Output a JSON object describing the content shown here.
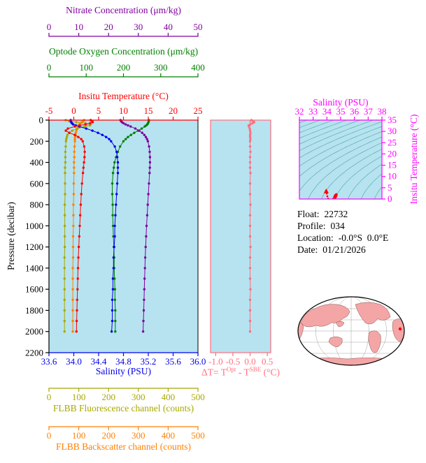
{
  "info": {
    "lines": [
      {
        "label": "Float:",
        "value": "22732"
      },
      {
        "label": "Profile:",
        "value": "034"
      },
      {
        "label": "Location:",
        "value": "-0.0°S  0.0°E"
      },
      {
        "label": "Date:",
        "value": "01/21/2026"
      }
    ]
  },
  "axes": {
    "nitrate": {
      "title": "Nitrate Concentration (μm/kg)",
      "color": "#8000a0",
      "range": [
        0,
        50
      ],
      "ticks": [
        "0",
        "10",
        "20",
        "30",
        "40",
        "50"
      ]
    },
    "oxygen": {
      "title": "Optode Oxygen Concentration (μm/kg)",
      "color": "#008000",
      "range": [
        0,
        400
      ],
      "ticks": [
        "0",
        "100",
        "200",
        "300",
        "400"
      ]
    },
    "temperature": {
      "title": "Insitu Temperature (°C)",
      "color": "#ff0000",
      "range": [
        -5,
        25
      ],
      "ticks": [
        "-5",
        "0",
        "5",
        "10",
        "15",
        "20",
        "25"
      ]
    },
    "pressure": {
      "title": "Pressure (decibar)",
      "color": "#000000",
      "range": [
        0,
        2200
      ],
      "ticks": [
        "0",
        "200",
        "400",
        "600",
        "800",
        "1000",
        "1200",
        "1400",
        "1600",
        "1800",
        "2000",
        "2200"
      ]
    },
    "salinity": {
      "title": "Salinity (PSU)",
      "color": "#0000ee",
      "range": [
        33.6,
        36.0
      ],
      "ticks": [
        "33.6",
        "34.0",
        "34.4",
        "34.8",
        "35.2",
        "35.6",
        "36.0"
      ]
    },
    "fluorescence": {
      "title": "FLBB Fluorescence channel (counts)",
      "color": "#a8a800",
      "range": [
        0,
        500
      ],
      "ticks": [
        "0",
        "100",
        "200",
        "300",
        "400",
        "500"
      ]
    },
    "backscatter": {
      "title": "FLBB Backscatter channel (counts)",
      "color": "#ff8000",
      "range": [
        0,
        500
      ],
      "ticks": [
        "0",
        "100",
        "200",
        "300",
        "400",
        "500"
      ]
    },
    "delta": {
      "label_parts": {
        "prefix": "ΔT= T",
        "sup1": "Opt",
        "mid": " - T",
        "sup2": "SBE",
        "suffix": " (°C)"
      },
      "color": "#ff6f7f",
      "range": [
        -1.15,
        0.6
      ],
      "ticks": [
        "-1.0",
        "-0.5",
        "0.0",
        "0.5"
      ]
    },
    "ts_salinity": {
      "title": "Salinity (PSU)",
      "color": "#ff00ff",
      "range": [
        32,
        38
      ],
      "ticks": [
        "32",
        "33",
        "34",
        "35",
        "36",
        "37",
        "38"
      ]
    },
    "ts_temperature": {
      "title": "Insitu Temperature (°C)",
      "color": "#ff00ff",
      "range": [
        0,
        35
      ],
      "ticks": [
        "0",
        "5",
        "10",
        "15",
        "20",
        "25",
        "30",
        "35"
      ]
    }
  },
  "colors": {
    "plot_bg": "#b6e3ef",
    "contour": "#4fa3a3",
    "land": "#f4a6a6",
    "land_edge": "#8a5050",
    "map_grid": "#a0a0a0",
    "map_outline": "#000000",
    "ts_point": "#ff0000",
    "marker": "#ff0000"
  },
  "chart_data": {
    "type": "line",
    "description": "BGC float vertical profiles vs pressure, optode-minus-SBE temperature difference panel, T-S diagram with density contours, and float position world map",
    "pressure_dbar": [
      0,
      10,
      20,
      30,
      40,
      50,
      60,
      80,
      100,
      120,
      140,
      160,
      180,
      200,
      250,
      300,
      350,
      400,
      450,
      500,
      600,
      700,
      800,
      900,
      1000,
      1100,
      1200,
      1300,
      1400,
      1500,
      1600,
      1700,
      1800,
      1900,
      2000
    ],
    "series": [
      {
        "id": "temperature",
        "axis": "temperature",
        "values": [
          3.4,
          3.7,
          3.8,
          3.3,
          2.4,
          1.2,
          0.2,
          -1.2,
          -1.6,
          -0.9,
          0.2,
          0.9,
          1.5,
          1.8,
          2.1,
          2.2,
          2.15,
          2.05,
          1.95,
          1.85,
          1.65,
          1.5,
          1.4,
          1.3,
          1.2,
          1.1,
          1.0,
          0.92,
          0.85,
          0.8,
          0.74,
          0.68,
          0.63,
          0.58,
          0.54
        ]
      },
      {
        "id": "salinity",
        "axis": "salinity",
        "values": [
          33.95,
          33.95,
          33.96,
          33.97,
          33.99,
          34.03,
          34.09,
          34.2,
          34.3,
          34.39,
          34.46,
          34.52,
          34.57,
          34.6,
          34.66,
          34.69,
          34.7,
          34.71,
          34.71,
          34.71,
          34.7,
          34.69,
          34.68,
          34.67,
          34.66,
          34.66,
          34.65,
          34.64,
          34.64,
          34.63,
          34.63,
          34.62,
          34.62,
          34.62,
          34.61
        ]
      },
      {
        "id": "oxygen",
        "axis": "oxygen",
        "values": [
          268,
          268,
          267,
          266,
          264,
          261,
          257,
          249,
          239,
          229,
          220,
          212,
          206,
          200,
          191,
          185,
          180,
          176,
          174,
          172,
          170,
          170,
          171,
          171,
          172,
          173,
          174,
          175,
          175,
          176,
          177,
          177,
          178,
          178,
          178
        ]
      },
      {
        "id": "nitrate",
        "axis": "nitrate",
        "values": [
          24,
          24.2,
          24.5,
          25,
          25.7,
          26.5,
          27.4,
          29,
          30.3,
          31.3,
          32,
          32.5,
          32.9,
          33.2,
          33.6,
          33.8,
          33.9,
          33.9,
          33.85,
          33.75,
          33.55,
          33.35,
          33.15,
          32.95,
          32.75,
          32.6,
          32.45,
          32.3,
          32.2,
          32.1,
          32,
          31.9,
          31.8,
          31.7,
          31.6
        ]
      },
      {
        "id": "fluorescence",
        "axis": "fluorescence",
        "values": [
          56,
          68,
          92,
          122,
          140,
          137,
          120,
          95,
          78,
          68,
          62,
          60,
          58,
          57,
          56,
          55,
          55,
          55,
          54,
          54,
          54,
          54,
          53,
          53,
          53,
          53,
          53,
          52,
          52,
          52,
          52,
          52,
          52,
          52,
          52
        ]
      },
      {
        "id": "backscatter",
        "axis": "backscatter",
        "values": [
          118,
          114,
          110,
          106,
          102,
          99,
          97,
          94,
          92,
          90,
          89,
          88,
          87,
          87,
          86,
          85,
          85,
          84,
          84,
          84,
          83,
          83,
          82,
          82,
          82,
          81,
          81,
          81,
          80,
          80,
          80,
          80,
          80,
          80,
          80
        ]
      },
      {
        "id": "delta_t",
        "axis": "delta",
        "values": [
          0.04,
          0.09,
          0.12,
          0.07,
          0.01,
          -0.04,
          -0.03,
          -0.01,
          0.0,
          0.01,
          0.0,
          0.0,
          0.01,
          0.0,
          0.0,
          0.01,
          0.0,
          0.0,
          0.0,
          0.01,
          0.0,
          0.0,
          0.01,
          0.0,
          0.0,
          0.0,
          0.01,
          0.0,
          0.0,
          0.0,
          0.01,
          0.0,
          0.0,
          0.0,
          0.0
        ]
      }
    ],
    "ts_plot": {
      "x": "salinity",
      "y": "temperature",
      "sal_range": [
        32,
        38
      ],
      "temp_range": [
        0,
        35
      ],
      "contours": "potential density isopleths"
    }
  }
}
